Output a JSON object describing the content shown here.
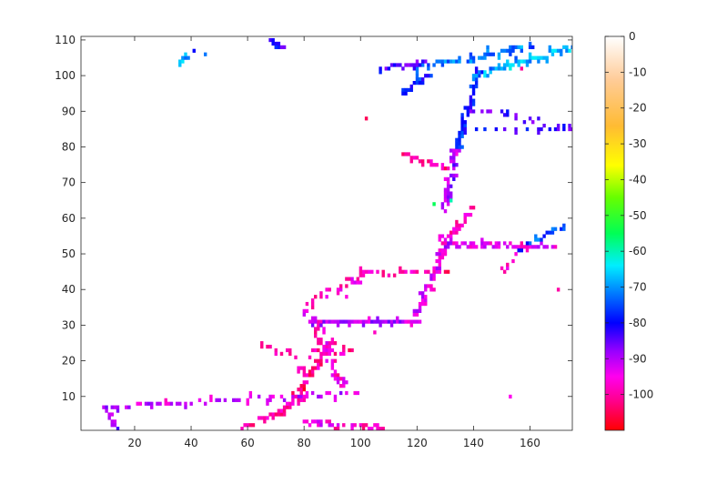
{
  "chart_data": {
    "type": "heatmap",
    "title": "",
    "xlabel": "",
    "ylabel": "",
    "xlim": [
      1,
      175
    ],
    "ylim": [
      0.5,
      111
    ],
    "xticks": [
      20,
      40,
      60,
      80,
      100,
      120,
      140,
      160
    ],
    "yticks": [
      10,
      20,
      30,
      40,
      50,
      60,
      70,
      80,
      90,
      100,
      110
    ],
    "colorbar": {
      "range": [
        -110,
        0
      ],
      "ticks": [
        0,
        -10,
        -20,
        -30,
        -40,
        -50,
        -60,
        -70,
        -80,
        -90,
        -100
      ],
      "colormap": "hsv-like: red (-110) → magenta → violet → blue → cyan → green → yellow → orange → white (0)",
      "stops": [
        {
          "value": -110,
          "color": "#ff0000"
        },
        {
          "value": -102,
          "color": "#ff0088"
        },
        {
          "value": -95,
          "color": "#ff00ee"
        },
        {
          "value": -88,
          "color": "#9900ff"
        },
        {
          "value": -80,
          "color": "#0000ff"
        },
        {
          "value": -72,
          "color": "#0077ff"
        },
        {
          "value": -64,
          "color": "#00eeff"
        },
        {
          "value": -55,
          "color": "#00ff55"
        },
        {
          "value": -45,
          "color": "#66ff00"
        },
        {
          "value": -36,
          "color": "#ffff00"
        },
        {
          "value": -25,
          "color": "#ffbb33"
        },
        {
          "value": -12,
          "color": "#ffcc99"
        },
        {
          "value": 0,
          "color": "#ffffff"
        }
      ]
    },
    "grid": false,
    "segments": [
      {
        "x0": 9,
        "y0": 7,
        "x1": 100,
        "y1": 11,
        "v": -92,
        "step": 2.4,
        "jitter": 0.6
      },
      {
        "x0": 9,
        "y0": 7,
        "x1": 14,
        "y1": 1,
        "v": -88,
        "step": 1,
        "jitter": 0.4
      },
      {
        "x0": 58,
        "y0": 1,
        "x1": 80,
        "y1": 9,
        "v": -100,
        "step": 1.2,
        "jitter": 0.7
      },
      {
        "x0": 72,
        "y0": 5,
        "x1": 90,
        "y1": 25,
        "v": -101,
        "step": 0.9,
        "jitter": 1.1
      },
      {
        "x0": 80,
        "y0": 3,
        "x1": 110,
        "y1": 1,
        "v": -97,
        "step": 1.6,
        "jitter": 1.0
      },
      {
        "x0": 84,
        "y0": 31,
        "x1": 94,
        "y1": 12,
        "v": -96,
        "step": 0.8,
        "jitter": 1.4
      },
      {
        "x0": 82,
        "y0": 31,
        "x1": 120,
        "y1": 31,
        "v": -90,
        "step": 1.0,
        "jitter": 0.4
      },
      {
        "x0": 83,
        "y0": 22,
        "x1": 98,
        "y1": 22,
        "v": -99,
        "step": 1.4,
        "jitter": 1.0
      },
      {
        "x0": 80,
        "y0": 35,
        "x1": 103,
        "y1": 45,
        "v": -98,
        "step": 1.3,
        "jitter": 0.8
      },
      {
        "x0": 100,
        "y0": 45,
        "x1": 130,
        "y1": 45,
        "v": -100,
        "step": 2.0,
        "jitter": 0.6
      },
      {
        "x0": 118,
        "y0": 30,
        "x1": 132,
        "y1": 55,
        "v": -93,
        "step": 0.8,
        "jitter": 0.9
      },
      {
        "x0": 128,
        "y0": 53,
        "x1": 140,
        "y1": 62,
        "v": -98,
        "step": 0.8,
        "jitter": 0.8
      },
      {
        "x0": 130,
        "y0": 53,
        "x1": 170,
        "y1": 52,
        "v": -94,
        "step": 1.0,
        "jitter": 0.6
      },
      {
        "x0": 155,
        "y0": 51,
        "x1": 172,
        "y1": 58,
        "v": -75,
        "step": 1.0,
        "jitter": 0.8
      },
      {
        "x0": 130,
        "y0": 62,
        "x1": 134,
        "y1": 80,
        "v": -88,
        "step": 0.7,
        "jitter": 1.0
      },
      {
        "x0": 115,
        "y0": 78,
        "x1": 131,
        "y1": 74,
        "v": -101,
        "step": 0.9,
        "jitter": 1.0
      },
      {
        "x0": 134,
        "y0": 80,
        "x1": 142,
        "y1": 102,
        "v": -78,
        "step": 0.7,
        "jitter": 0.9
      },
      {
        "x0": 140,
        "y0": 100,
        "x1": 175,
        "y1": 108,
        "v": -68,
        "step": 0.8,
        "jitter": 0.6
      },
      {
        "x0": 120,
        "y0": 102,
        "x1": 160,
        "y1": 108,
        "v": -72,
        "step": 1.0,
        "jitter": 0.8
      },
      {
        "x0": 108,
        "y0": 102,
        "x1": 124,
        "y1": 104,
        "v": -84,
        "step": 1.0,
        "jitter": 0.6
      },
      {
        "x0": 115,
        "y0": 95,
        "x1": 124,
        "y1": 100,
        "v": -78,
        "step": 0.9,
        "jitter": 0.6
      },
      {
        "x0": 140,
        "y0": 90,
        "x1": 175,
        "y1": 85,
        "v": -84,
        "step": 3.0,
        "jitter": 1.0
      },
      {
        "x0": 137,
        "y0": 85,
        "x1": 170,
        "y1": 85,
        "v": -82,
        "step": 3.5,
        "jitter": 0.5
      },
      {
        "x0": 68,
        "y0": 110,
        "x1": 72,
        "y1": 108,
        "v": -82,
        "step": 0.7,
        "jitter": 0.4
      },
      {
        "x0": 36,
        "y0": 104,
        "x1": 39,
        "y1": 105,
        "v": -70,
        "step": 0.7,
        "jitter": 0.3
      },
      {
        "x0": 150,
        "y0": 45,
        "x1": 156,
        "y1": 50,
        "v": -98,
        "step": 1.2,
        "jitter": 0.8
      },
      {
        "x0": 66,
        "y0": 25,
        "x1": 80,
        "y1": 18,
        "v": -99,
        "step": 2.2,
        "jitter": 1.8
      }
    ],
    "points": [
      {
        "x": 102,
        "y": 88,
        "v": -105
      },
      {
        "x": 170,
        "y": 40,
        "v": -100
      },
      {
        "x": 153,
        "y": 10,
        "v": -95
      },
      {
        "x": 105,
        "y": 28,
        "v": -98
      },
      {
        "x": 95,
        "y": 38,
        "v": -96
      },
      {
        "x": 132,
        "y": 65,
        "v": -60
      },
      {
        "x": 126,
        "y": 64,
        "v": -55
      },
      {
        "x": 174,
        "y": 107,
        "v": -72
      },
      {
        "x": 160,
        "y": 88,
        "v": -85
      },
      {
        "x": 45,
        "y": 106,
        "v": -72
      },
      {
        "x": 41,
        "y": 107,
        "v": -80
      },
      {
        "x": 157,
        "y": 102,
        "v": -101
      }
    ]
  }
}
